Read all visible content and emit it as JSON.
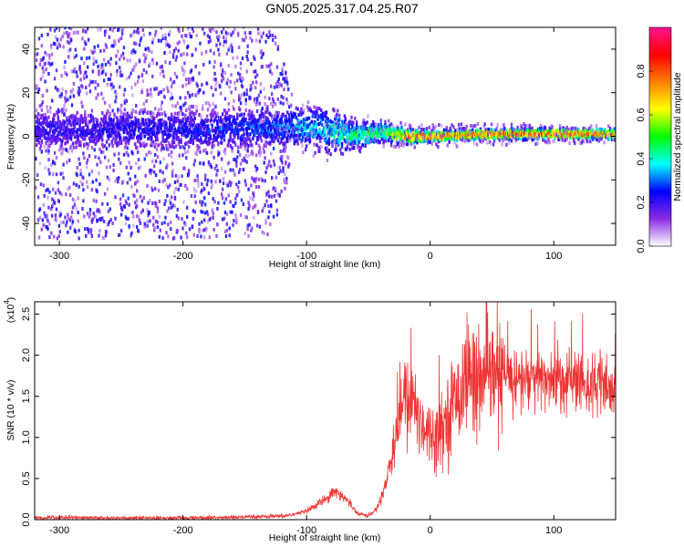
{
  "title": "GN05.2025.317.04.25.R07",
  "colorbar": {
    "label": "Normalized spectral amplitude",
    "ticks": [
      "0.0",
      "0.2",
      "0.4",
      "0.6",
      "0.8"
    ],
    "tick_values": [
      0.0,
      0.2,
      0.4,
      0.6,
      0.8
    ],
    "range": [
      0,
      1
    ],
    "colormap": [
      "#ffffff",
      "#8a2be2",
      "#0000ff",
      "#00ffff",
      "#00ff00",
      "#ffff00",
      "#ff8000",
      "#ff0000",
      "#ff1493"
    ]
  },
  "chart_data": [
    {
      "type": "heatmap",
      "xlabel": "Height of straight line (km)",
      "ylabel": "Frequency (Hz)",
      "xlim": [
        -320,
        150
      ],
      "ylim": [
        -50,
        50
      ],
      "xticks": [
        -300,
        -200,
        -100,
        0,
        100
      ],
      "xtick_labels": [
        "-300",
        "-200",
        "-100",
        "0",
        "100"
      ],
      "yticks": [
        -40,
        -20,
        0,
        20,
        40
      ],
      "ytick_labels": [
        "-40",
        "-20",
        "0",
        "20",
        "40"
      ],
      "description_points": {
        "center_frequency_hz": [
          [
            -320,
            3
          ],
          [
            -200,
            3
          ],
          [
            -100,
            4
          ],
          [
            -75,
            2
          ],
          [
            -60,
            0
          ],
          [
            -40,
            2
          ],
          [
            -20,
            0
          ],
          [
            0,
            0
          ],
          [
            50,
            1
          ],
          [
            100,
            1
          ],
          [
            150,
            1
          ]
        ],
        "band_halfwidth_hz": [
          [
            -320,
            8
          ],
          [
            -200,
            8
          ],
          [
            -120,
            8
          ],
          [
            -80,
            9
          ],
          [
            -60,
            5
          ],
          [
            -40,
            4
          ],
          [
            -20,
            3
          ],
          [
            0,
            2
          ],
          [
            150,
            2
          ]
        ],
        "peak_amplitude": [
          [
            -320,
            0.25
          ],
          [
            -200,
            0.28
          ],
          [
            -120,
            0.35
          ],
          [
            -80,
            0.45
          ],
          [
            -60,
            0.55
          ],
          [
            -40,
            0.55
          ],
          [
            -20,
            0.85
          ],
          [
            0,
            0.9
          ],
          [
            50,
            0.9
          ],
          [
            100,
            0.9
          ],
          [
            150,
            0.85
          ]
        ],
        "scatter_extent_hz": [
          [
            -320,
            50
          ],
          [
            -130,
            50
          ],
          [
            -110,
            12
          ],
          [
            -70,
            10
          ],
          [
            -50,
            6
          ],
          [
            150,
            4
          ]
        ]
      }
    },
    {
      "type": "line",
      "xlabel": "Height of straight line (km)",
      "ylabel": "SNR (10 * v/v)",
      "y_multiplier_label": "(x10",
      "y_multiplier_exponent": "4",
      "y_multiplier_close": ")",
      "xlim": [
        -320,
        150
      ],
      "ylim": [
        0,
        2.65
      ],
      "xticks": [
        -300,
        -200,
        -100,
        0,
        100
      ],
      "xtick_labels": [
        "-300",
        "-200",
        "-100",
        "0",
        "100"
      ],
      "yticks": [
        0.0,
        0.5,
        1.0,
        1.5,
        2.0,
        2.5
      ],
      "ytick_labels": [
        "0.0",
        "0.5",
        "1.0",
        "1.5",
        "2.0",
        "2.5"
      ],
      "series_color": "#ee3333",
      "x": [
        -320,
        -300,
        -260,
        -200,
        -150,
        -120,
        -105,
        -95,
        -85,
        -78,
        -72,
        -65,
        -58,
        -50,
        -45,
        -40,
        -35,
        -30,
        -25,
        -20,
        -15,
        -10,
        -5,
        0,
        5,
        10,
        15,
        20,
        25,
        30,
        35,
        40,
        45,
        50,
        60,
        70,
        80,
        90,
        100,
        110,
        120,
        130,
        140,
        145,
        150
      ],
      "y": [
        0.02,
        0.03,
        0.02,
        0.02,
        0.03,
        0.04,
        0.08,
        0.15,
        0.25,
        0.35,
        0.3,
        0.2,
        0.07,
        0.05,
        0.1,
        0.25,
        0.5,
        0.9,
        1.3,
        1.45,
        1.45,
        1.3,
        1.15,
        1.05,
        1.05,
        1.15,
        1.3,
        1.45,
        1.6,
        1.75,
        1.75,
        1.7,
        1.7,
        1.72,
        1.75,
        1.72,
        1.7,
        1.7,
        1.72,
        1.68,
        1.7,
        1.65,
        1.6,
        1.55,
        1.55
      ]
    }
  ]
}
